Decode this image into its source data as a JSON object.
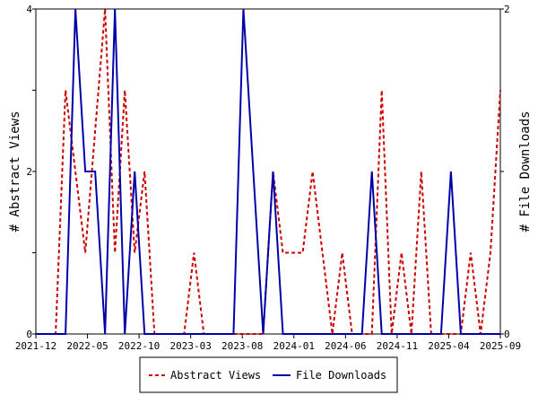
{
  "chart_data": {
    "type": "line",
    "x_tick_labels": [
      "2021-12",
      "2022-05",
      "2022-10",
      "2023-03",
      "2023-08",
      "2024-01",
      "2024-06",
      "2024-11",
      "2025-04",
      "2025-09"
    ],
    "ylabel_left": "# Abstract Views",
    "ylabel_right": "# File Downloads",
    "ylim_left": [
      0,
      4
    ],
    "ylim_right": [
      0,
      2
    ],
    "y_ticks_left": [
      0,
      2,
      4
    ],
    "y_ticks_right": [
      0,
      1,
      2
    ],
    "legend_position": "bottom-center",
    "grid": false,
    "series": [
      {
        "name": "Abstract Views",
        "axis": "left",
        "color": "#cc0000",
        "style": "dashed",
        "points": [
          [
            0,
            0
          ],
          [
            2,
            0
          ],
          [
            3,
            3
          ],
          [
            5,
            1
          ],
          [
            7,
            4
          ],
          [
            8,
            1
          ],
          [
            9,
            3
          ],
          [
            10,
            1
          ],
          [
            11,
            2
          ],
          [
            12,
            0
          ],
          [
            15,
            0
          ],
          [
            16,
            1
          ],
          [
            17,
            0
          ],
          [
            23,
            0
          ],
          [
            24,
            2
          ],
          [
            25,
            1
          ],
          [
            27,
            1
          ],
          [
            28,
            2
          ],
          [
            29,
            1
          ],
          [
            30,
            0
          ],
          [
            31,
            1
          ],
          [
            32,
            0
          ],
          [
            34,
            0
          ],
          [
            35,
            3
          ],
          [
            36,
            0
          ],
          [
            37,
            1
          ],
          [
            38,
            0
          ],
          [
            39,
            2
          ],
          [
            40,
            0
          ],
          [
            43,
            0
          ],
          [
            44,
            1
          ],
          [
            45,
            0
          ],
          [
            46,
            1
          ],
          [
            47,
            3
          ]
        ]
      },
      {
        "name": "File Downloads",
        "axis": "right",
        "color": "#0000aa",
        "style": "solid",
        "points": [
          [
            0,
            0
          ],
          [
            3,
            0
          ],
          [
            4,
            2
          ],
          [
            5,
            1
          ],
          [
            6,
            1
          ],
          [
            7,
            0
          ],
          [
            8,
            2
          ],
          [
            9,
            0
          ],
          [
            10,
            1
          ],
          [
            11,
            0
          ],
          [
            20,
            0
          ],
          [
            21,
            2
          ],
          [
            22,
            1
          ],
          [
            23,
            0
          ],
          [
            24,
            1
          ],
          [
            25,
            0
          ],
          [
            30,
            0
          ],
          [
            31,
            0
          ],
          [
            32,
            0
          ],
          [
            33,
            0
          ],
          [
            34,
            1
          ],
          [
            35,
            0
          ],
          [
            38,
            0
          ],
          [
            39,
            0
          ],
          [
            40,
            0
          ],
          [
            41,
            0
          ],
          [
            42,
            1
          ],
          [
            43,
            0
          ],
          [
            47,
            0
          ]
        ]
      }
    ]
  }
}
